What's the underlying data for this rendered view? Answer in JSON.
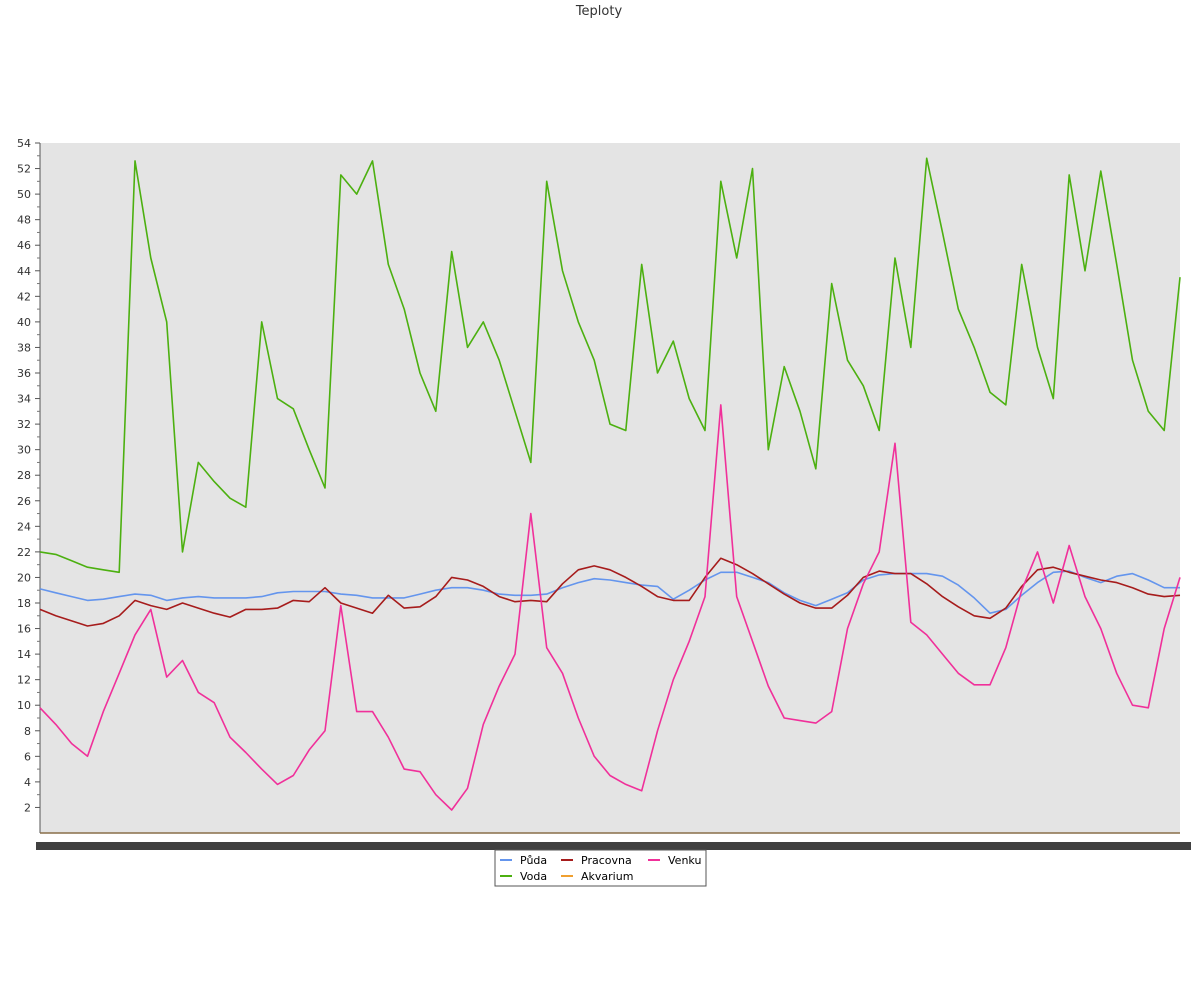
{
  "chart_data": {
    "type": "line",
    "title": "Teploty",
    "xlabel": "",
    "ylabel": "",
    "ylim": [
      0,
      54
    ],
    "yticks": [
      2,
      4,
      6,
      8,
      10,
      12,
      14,
      16,
      18,
      20,
      22,
      24,
      26,
      28,
      30,
      32,
      34,
      36,
      38,
      40,
      42,
      44,
      46,
      48,
      50,
      52,
      54
    ],
    "grid": false,
    "legend_position": "bottom-center",
    "x": [
      0,
      4,
      8,
      12,
      16,
      20,
      24,
      28,
      32,
      36,
      40,
      44,
      48,
      52,
      56,
      60,
      64,
      68,
      72,
      76,
      80,
      84,
      88,
      92,
      96,
      100,
      104,
      108,
      112,
      116,
      120,
      124,
      128,
      132,
      136,
      140,
      144,
      148,
      152,
      156,
      160,
      164,
      168,
      172,
      176,
      180,
      184,
      188,
      192,
      196,
      200,
      204,
      208,
      212,
      216,
      220,
      224,
      228,
      232,
      236,
      240,
      244,
      248,
      252,
      256,
      260,
      264,
      268,
      272,
      276,
      280,
      284,
      288
    ],
    "series": [
      {
        "name": "Půda",
        "color": "#6495ed",
        "values": [
          19.1,
          18.8,
          18.5,
          18.2,
          18.3,
          18.5,
          18.7,
          18.6,
          18.2,
          18.4,
          18.5,
          18.4,
          18.4,
          18.4,
          18.5,
          18.8,
          18.9,
          18.9,
          18.9,
          18.7,
          18.6,
          18.4,
          18.4,
          18.4,
          18.7,
          19.0,
          19.2,
          19.2,
          19.0,
          18.7,
          18.6,
          18.6,
          18.7,
          19.2,
          19.6,
          19.9,
          19.8,
          19.6,
          19.4,
          19.3,
          18.3,
          19.0,
          19.8,
          20.4,
          20.4,
          20.0,
          19.6,
          18.8,
          18.2,
          17.8,
          18.3,
          18.8,
          19.8,
          20.2,
          20.3,
          20.3,
          20.3,
          20.1,
          19.4,
          18.4,
          17.2,
          17.5,
          18.6,
          19.6,
          20.4,
          20.5,
          20.0,
          19.6,
          20.1,
          20.3,
          19.8,
          19.2,
          19.2
        ]
      },
      {
        "name": "Pracovna",
        "color": "#a61c1c",
        "values": [
          17.5,
          17.0,
          16.6,
          16.2,
          16.4,
          17.0,
          18.2,
          17.8,
          17.5,
          18.0,
          17.6,
          17.2,
          16.9,
          17.5,
          17.5,
          17.6,
          18.2,
          18.1,
          19.2,
          18.0,
          17.6,
          17.2,
          18.6,
          17.6,
          17.7,
          18.5,
          20.0,
          19.8,
          19.3,
          18.5,
          18.1,
          18.2,
          18.1,
          19.5,
          20.6,
          20.9,
          20.6,
          20.0,
          19.3,
          18.5,
          18.2,
          18.2,
          20.0,
          21.5,
          21.0,
          20.3,
          19.5,
          18.7,
          18.0,
          17.6,
          17.6,
          18.6,
          20.0,
          20.5,
          20.3,
          20.3,
          19.5,
          18.5,
          17.7,
          17.0,
          16.8,
          17.6,
          19.3,
          20.6,
          20.8,
          20.4,
          20.1,
          19.8,
          19.6,
          19.2,
          18.7,
          18.5,
          18.6
        ]
      },
      {
        "name": "Venku",
        "color": "#f0309a",
        "values": [
          9.8,
          8.5,
          7.0,
          6.0,
          9.5,
          12.5,
          15.5,
          17.5,
          12.2,
          13.5,
          11.0,
          10.2,
          7.5,
          6.3,
          5.0,
          3.8,
          4.5,
          6.5,
          8.0,
          17.8,
          9.5,
          9.5,
          7.5,
          5.0,
          4.8,
          3.0,
          1.8,
          3.5,
          8.5,
          11.5,
          14.0,
          25.0,
          14.5,
          12.5,
          9.0,
          6.0,
          4.5,
          3.8,
          3.3,
          8.0,
          12.0,
          15.0,
          18.5,
          33.5,
          18.5,
          15.0,
          11.5,
          9.0,
          8.8,
          8.6,
          9.5,
          16.0,
          19.5,
          22.0,
          30.5,
          16.5,
          15.5,
          14.0,
          12.5,
          11.6,
          11.6,
          14.5,
          19.0,
          22.0,
          18.0,
          22.5,
          18.5,
          16.0,
          12.5,
          10.0,
          9.8,
          16.0,
          20.0
        ]
      },
      {
        "name": "Voda",
        "color": "#4cb010",
        "values": [
          22.0,
          21.8,
          21.3,
          20.8,
          20.6,
          20.4,
          52.6,
          45.0,
          40.0,
          22.0,
          29.0,
          27.5,
          26.2,
          25.5,
          40.0,
          34.0,
          33.2,
          30.0,
          27.0,
          51.5,
          50.0,
          52.6,
          44.5,
          41.0,
          36.0,
          33.0,
          45.5,
          38.0,
          40.0,
          37.0,
          33.0,
          29.0,
          51.0,
          44.0,
          40.0,
          37.0,
          32.0,
          31.5,
          44.5,
          36.0,
          38.5,
          34.0,
          31.5,
          51.0,
          45.0,
          52.0,
          30.0,
          36.5,
          33.0,
          28.5,
          43.0,
          37.0,
          35.0,
          31.5,
          45.0,
          38.0,
          52.8,
          47.0,
          41.0,
          38.0,
          34.5,
          33.5,
          44.5,
          38.0,
          34.0,
          51.5,
          44.0,
          51.8,
          44.5,
          37.0,
          33.0,
          31.5,
          43.5
        ]
      },
      {
        "name": "Akvarium",
        "color": "#f0a030",
        "values": [
          0,
          0,
          0,
          0,
          0,
          0,
          0,
          0,
          0,
          0,
          0,
          0,
          0,
          0,
          0,
          0,
          0,
          0,
          0,
          0,
          0,
          0,
          0,
          0,
          0,
          0,
          0,
          0,
          0,
          0,
          0,
          0,
          0,
          0,
          0,
          0,
          0,
          0,
          0,
          0,
          0,
          0,
          0,
          0,
          0,
          0,
          0,
          0,
          0,
          0,
          0,
          0,
          0,
          0,
          0,
          0,
          0,
          0,
          0,
          0,
          0,
          0,
          0,
          0,
          0,
          0,
          0,
          0,
          0,
          0,
          0,
          0,
          0
        ]
      }
    ],
    "legend": {
      "columns": [
        [
          "Půda",
          "Voda"
        ],
        [
          "Pracovna",
          "Akvarium"
        ],
        [
          "Venku"
        ]
      ]
    }
  }
}
